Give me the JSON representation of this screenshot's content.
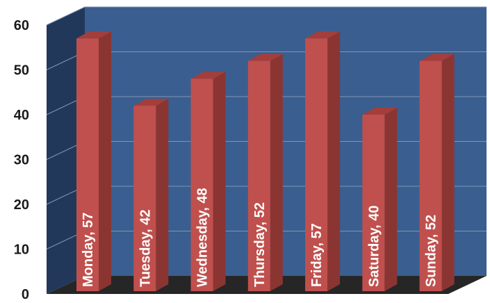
{
  "chart_data": {
    "type": "bar",
    "title": "",
    "xlabel": "",
    "ylabel": "",
    "categories": [
      "Monday",
      "Tuesday",
      "Wednesday",
      "Thursday",
      "Friday",
      "Saturday",
      "Sunday"
    ],
    "values": [
      57,
      42,
      48,
      52,
      57,
      40,
      52
    ],
    "data_labels": [
      "Monday, 57",
      "Tuesday, 42",
      "Wednesday, 48",
      "Thursday, 52",
      "Friday, 57",
      "Saturday, 40",
      "Sunday, 52"
    ],
    "ylim": [
      0,
      60
    ],
    "yticks": [
      "0",
      "10",
      "20",
      "30",
      "40",
      "50",
      "60"
    ],
    "grid": true,
    "style": "3d-column",
    "colors": {
      "back_wall": "#3a5e8f",
      "side_wall": "#22385a",
      "floor": "#262626",
      "bar_front": "#c0504d",
      "bar_side": "#8b3533",
      "bar_top": "#a43e3b"
    }
  }
}
